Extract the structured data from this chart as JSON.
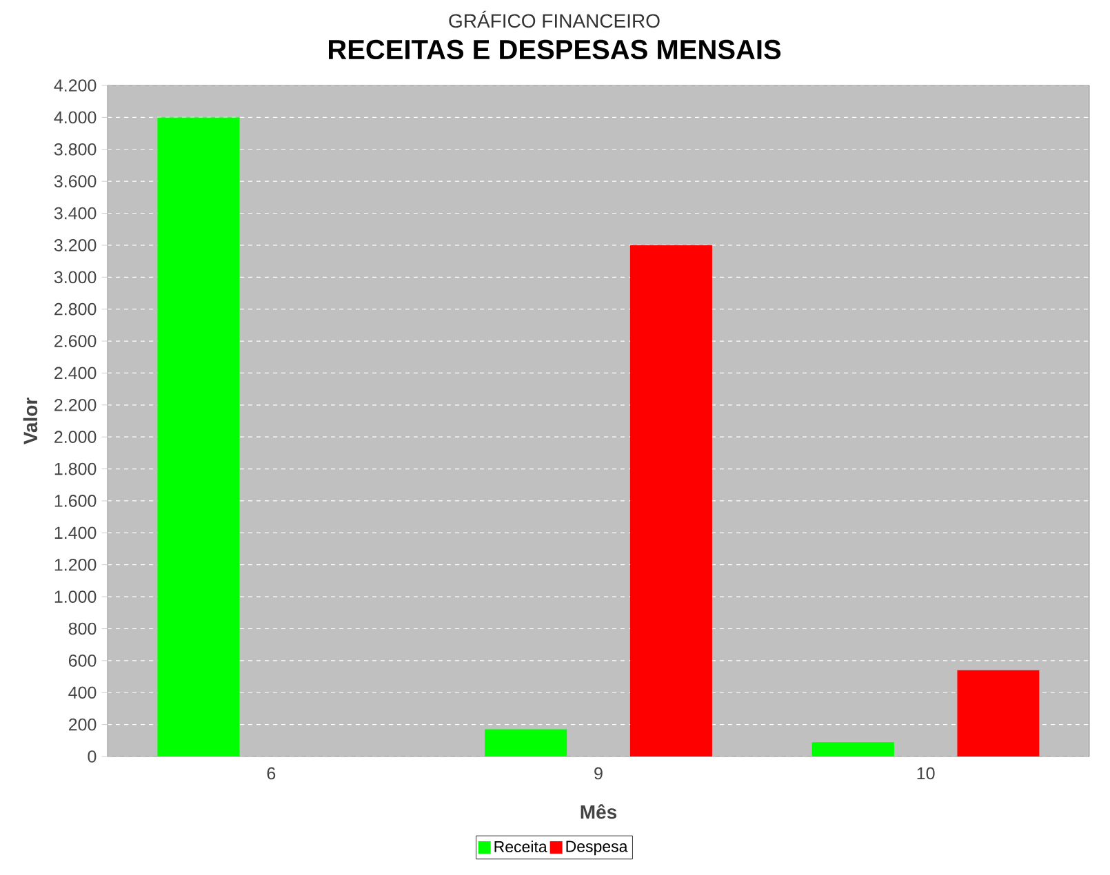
{
  "chart_data": {
    "type": "bar",
    "title": "RECEITAS E DESPESAS MENSAIS",
    "annotations": [
      "GRÁFICO FINANCEIRO"
    ],
    "xlabel": "Mês",
    "ylabel": "Valor",
    "categories": [
      "6",
      "9",
      "10"
    ],
    "series": [
      {
        "name": "Receita",
        "color": "#00ff00",
        "values": [
          4000,
          170,
          90
        ]
      },
      {
        "name": "Despesa",
        "color": "#ff0000",
        "values": [
          null,
          3200,
          540
        ]
      }
    ],
    "ylim": [
      0,
      4200
    ],
    "yticks": [
      0,
      200,
      400,
      600,
      800,
      {
        "value": 1000,
        "label": "1.000"
      },
      {
        "value": 1200,
        "label": "1.200"
      },
      {
        "value": 1400,
        "label": "1.400"
      },
      {
        "value": 1600,
        "label": "1.600"
      },
      {
        "value": 1800,
        "label": "1.800"
      },
      {
        "value": 2000,
        "label": "2.000"
      },
      {
        "value": 2200,
        "label": "2.200"
      },
      {
        "value": 2400,
        "label": "2.400"
      },
      {
        "value": 2600,
        "label": "2.600"
      },
      {
        "value": 2800,
        "label": "2.800"
      },
      {
        "value": 3000,
        "label": "3.000"
      },
      {
        "value": 3200,
        "label": "3.200"
      },
      {
        "value": 3400,
        "label": "3.400"
      },
      {
        "value": 3600,
        "label": "3.600"
      },
      {
        "value": 3800,
        "label": "3.800"
      },
      {
        "value": 4000,
        "label": "4.000"
      },
      {
        "value": 4200,
        "label": "4.200"
      }
    ],
    "grid": "y",
    "legend": "bottom"
  }
}
